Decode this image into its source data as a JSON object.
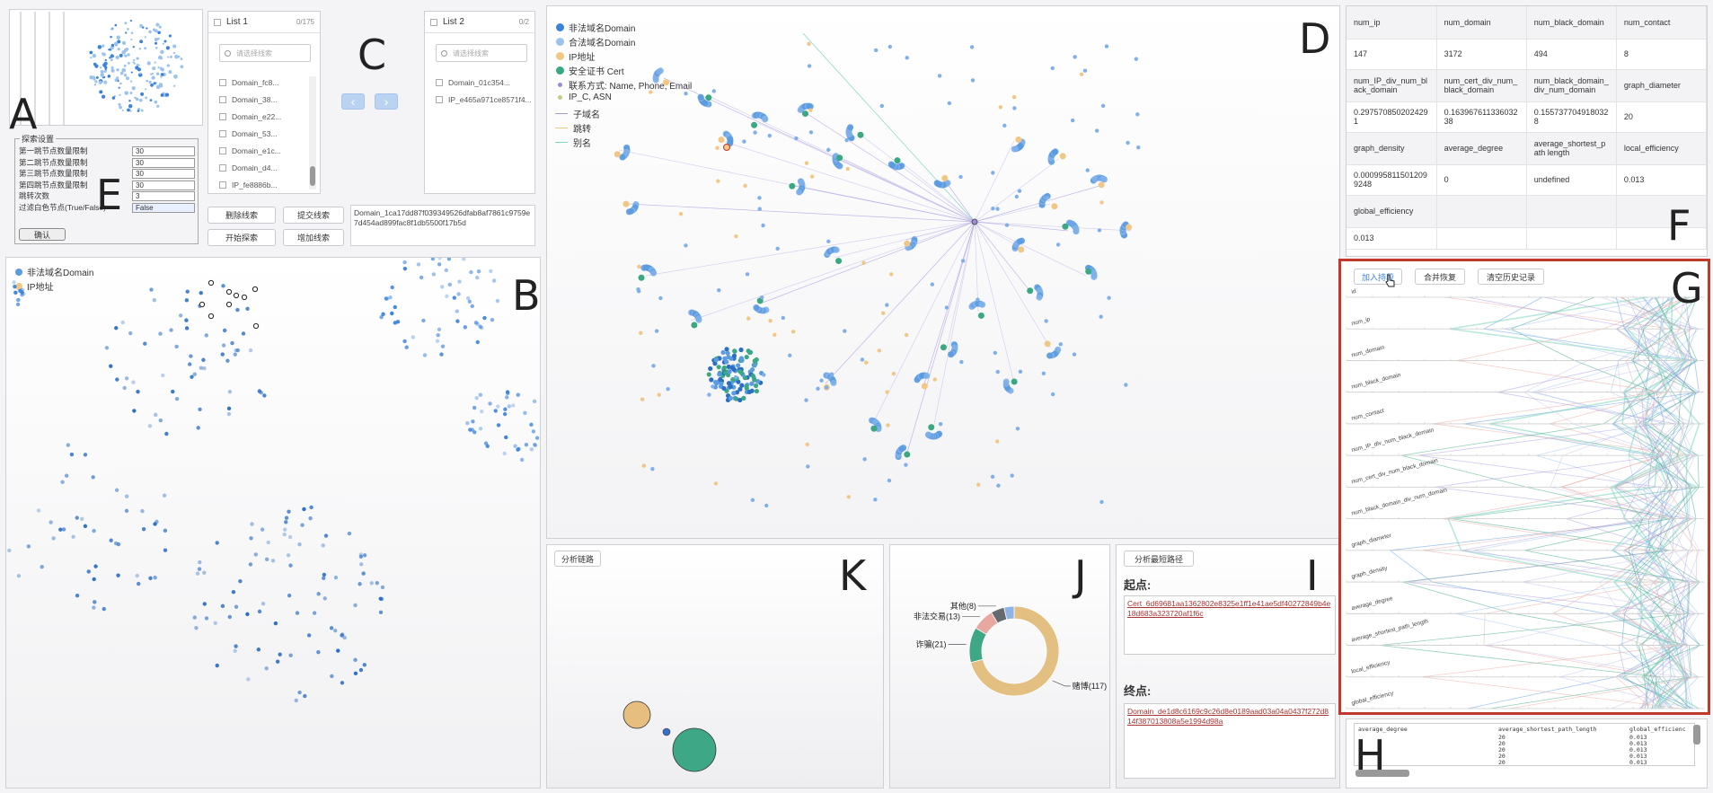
{
  "labels": {
    "A": "A",
    "B": "B",
    "C": "C",
    "D": "D",
    "E": "E",
    "F": "F",
    "G": "G",
    "H": "H",
    "I": "I",
    "J": "J",
    "K": "K"
  },
  "search_settings": {
    "title": "探索设置",
    "rows": [
      {
        "label": "第一跳节点数量限制",
        "value": "30"
      },
      {
        "label": "第二跳节点数量限制",
        "value": "30"
      },
      {
        "label": "第三跳节点数量限制",
        "value": "30"
      },
      {
        "label": "第四跳节点数量限制",
        "value": "30"
      },
      {
        "label": "跳转次数",
        "value": "3"
      },
      {
        "label": "过滤白色节点(True/False)",
        "value": "False"
      }
    ],
    "confirm": "确认"
  },
  "list1": {
    "title": "List 1",
    "count": "0/175",
    "placeholder": "请选择线索",
    "items": [
      "Domain_fc8...",
      "Domain_38...",
      "Domain_e22...",
      "Domain_53...",
      "Domain_e1c...",
      "Domain_d4...",
      "IP_fe8886b..."
    ]
  },
  "list2": {
    "title": "List 2",
    "count": "0/2",
    "placeholder": "请选择线索",
    "items": [
      "Domain_01c354...",
      "IP_e465a971ce8571f4..."
    ]
  },
  "arrows": {
    "left": "‹",
    "right": "›"
  },
  "clue_buttons": {
    "delete": "删除线索",
    "submit": "提交线索",
    "start": "开始探索",
    "add": "增加线索"
  },
  "clue_text": "Domain_1ca17dd87f039349526dfab8af7861c9759e7d454ad899fac8f1db5500f17b5d",
  "b_legend": [
    {
      "label": "非法域名Domain",
      "color": "#5b9be0"
    },
    {
      "label": "IP地址",
      "color": "#f0c98a"
    }
  ],
  "d_legend": [
    {
      "label": "非法域名Domain",
      "color": "#3b82d9",
      "kind": "dot"
    },
    {
      "label": "合法域名Domain",
      "color": "#9cc3ee",
      "kind": "dot"
    },
    {
      "label": "IP地址",
      "color": "#f2c785",
      "kind": "dot"
    },
    {
      "label": "安全证书 Cert",
      "color": "#3aa882",
      "kind": "dot"
    },
    {
      "label": "联系方式: Name, Phone, Email",
      "color": "#a08ad8",
      "kind": "small"
    },
    {
      "label": "IP_C, ASN",
      "color": "#c7c98a",
      "kind": "small"
    },
    {
      "label": "子域名",
      "color": "#a99ae0",
      "kind": "line"
    },
    {
      "label": "跳转",
      "color": "#f0c98a",
      "kind": "line"
    },
    {
      "label": "别名",
      "color": "#7fd7c1",
      "kind": "line"
    }
  ],
  "metrics": {
    "rows": [
      {
        "h": [
          "num_ip",
          "num_domain",
          "num_black_domain",
          "num_contact"
        ],
        "v": [
          "147",
          "3172",
          "494",
          "8"
        ]
      },
      {
        "h": [
          "num_IP_div_num_black_domain",
          "num_cert_div_num_black_domain",
          "num_black_domain_div_num_domain",
          "graph_diameter"
        ],
        "v": [
          "0.2975708502024291",
          "0.16396761133603238",
          "0.1557377049180328",
          "20"
        ]
      },
      {
        "h": [
          "graph_density",
          "average_degree",
          "average_shortest_path length",
          "local_efficiency"
        ],
        "v": [
          "0.0009958115012099248",
          "0",
          "undefined",
          "0.013"
        ]
      },
      {
        "h": [
          "global_efficiency",
          "",
          "",
          ""
        ],
        "v": [
          "0.013",
          "",
          "",
          ""
        ]
      }
    ]
  },
  "g_buttons": {
    "join": "加入持段",
    "merge": "合并恢复",
    "clear": "清空历史记录"
  },
  "axes": [
    "id",
    "num_ip",
    "num_domain",
    "num_black_domain",
    "num_contact",
    "num_IP_div_num_black_domain",
    "num_cert_div_num_black_domain",
    "num_black_domain_div_num_domain",
    "graph_diameter",
    "graph_density",
    "average_degree",
    "average_shortest_path_length",
    "local_efficiency",
    "global_efficiency"
  ],
  "h_table": {
    "headers": [
      "average_degree",
      "average_shortest_path_length",
      "global_efficienc"
    ],
    "rows": [
      [
        "",
        "20",
        "0.013"
      ],
      [
        "",
        "20",
        "0.013"
      ],
      [
        "",
        "20",
        "0.013"
      ],
      [
        "",
        "20",
        "0.013"
      ],
      [
        "",
        "20",
        "0.013"
      ]
    ]
  },
  "k": {
    "button": "分析链路"
  },
  "j": {
    "slices": [
      {
        "label": "赌博(117)",
        "value": 117,
        "color": "#e3bf82"
      },
      {
        "label": "诈骗(21)",
        "value": 21,
        "color": "#3ea886"
      },
      {
        "label": "非法交易(13)",
        "value": 13,
        "color": "#e8a7a0"
      },
      {
        "label": "其他(8)",
        "value": 8,
        "color": "#666a6e"
      },
      {
        "label": "",
        "value": 6,
        "color": "#8fb3e6"
      }
    ]
  },
  "i": {
    "button": "分析最短路径",
    "start_label": "起点:",
    "start_value": "Cert_6d69681aa1362802e8325e1ff1e41ae5df40272849b4e18d683a323720af1f6c",
    "end_label": "终点:",
    "end_value": "Domain_de1d8c6169c9c26d8e0189aad03a04a0437f272d814f387013808a5e1994d98a"
  },
  "colors": {
    "accent_red": "#c0392b",
    "blue": "#3b82d9",
    "orange": "#f2c785",
    "green": "#3aa882"
  }
}
